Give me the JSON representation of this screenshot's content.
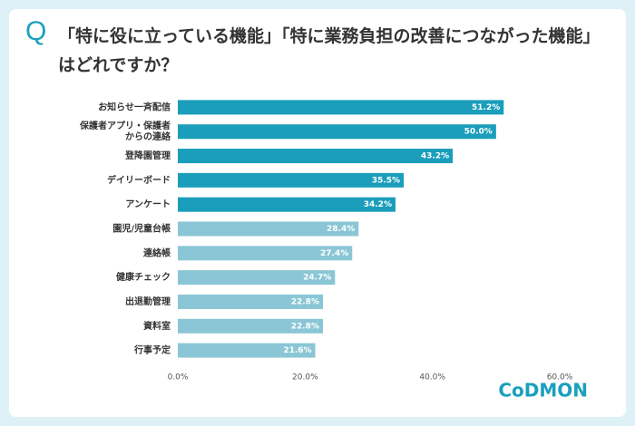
{
  "chart_data": {
    "type": "bar",
    "orientation": "horizontal",
    "title_marker": "Q",
    "title": "「特に役に立っている機能」「特に業務負担の改善につながった機能」はどれですか？",
    "categories": [
      "お知らせ一斉配信",
      "保護者アプリ・保護者\nからの連絡",
      "登降園管理",
      "デイリーボード",
      "アンケート",
      "園児/児童台帳",
      "連絡帳",
      "健康チェック",
      "出退勤管理",
      "資料室",
      "行事予定"
    ],
    "values": [
      51.2,
      50.0,
      43.2,
      35.5,
      34.2,
      28.4,
      27.4,
      24.7,
      22.8,
      22.8,
      21.6
    ],
    "value_labels": [
      "51.2%",
      "50.0%",
      "43.2%",
      "35.5%",
      "34.2%",
      "28.4%",
      "27.4%",
      "24.7%",
      "22.8%",
      "22.8%",
      "21.6%"
    ],
    "colors": [
      "#1a9ebb",
      "#1a9ebb",
      "#1a9ebb",
      "#1a9ebb",
      "#1a9ebb",
      "#8ac6d5",
      "#8ac6d5",
      "#8ac6d5",
      "#8ac6d5",
      "#8ac6d5",
      "#8ac6d5"
    ],
    "xlim": [
      0,
      60
    ],
    "xticks": [
      {
        "value": 0,
        "label": "0.0%"
      },
      {
        "value": 20,
        "label": "20.0%"
      },
      {
        "value": 40,
        "label": "40.0%"
      },
      {
        "value": 60,
        "label": "60.0%"
      }
    ],
    "grid": false,
    "logo": "CoDMON"
  }
}
